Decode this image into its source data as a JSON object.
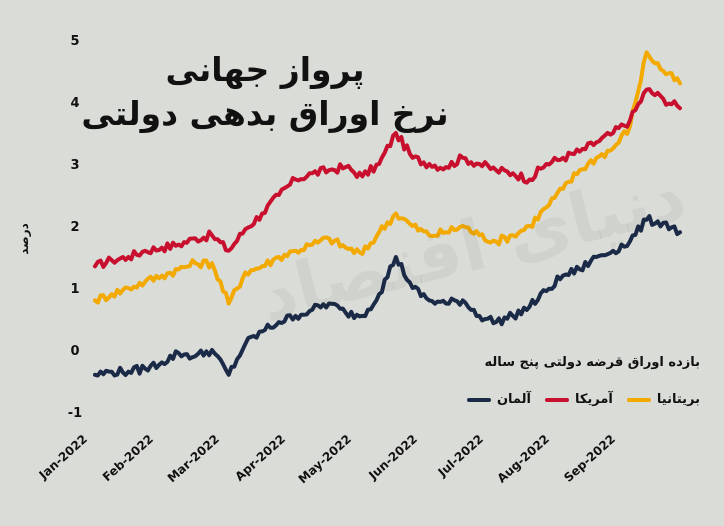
{
  "chart_data": {
    "type": "line",
    "title": "پرواز جهانی",
    "subtitle": "نرخ اوراق بدهی دولتی",
    "ylabel": "درصد",
    "xlabel": "",
    "ylim": [
      -1,
      5
    ],
    "yticks": [
      "-1",
      "0",
      "1",
      "2",
      "3",
      "4",
      "5"
    ],
    "xtick_labels": [
      "Jan-2022",
      "Feb-2022",
      "Mar-2022",
      "Apr-2022",
      "May-2022",
      "Jun-2022",
      "Jul-2022",
      "Aug-2022",
      "Sep-2022"
    ],
    "legend_title": "بازده اوراق قرضه دولتی پنج ساله",
    "legend_position": "bottom-right",
    "grid": false,
    "watermark": "دنیای اقتصاد",
    "x": [
      0,
      0.25,
      0.5,
      0.75,
      1,
      1.25,
      1.5,
      1.75,
      2,
      2.25,
      2.5,
      2.75,
      3,
      3.25,
      3.5,
      3.75,
      4,
      4.25,
      4.5,
      4.75,
      5,
      5.25,
      5.5,
      5.75,
      6,
      6.25,
      6.5,
      6.75,
      7,
      7.25,
      7.5,
      7.75,
      8,
      8.25,
      8.5,
      8.75
    ],
    "series": [
      {
        "name": "آمریکا",
        "color": "#c8102e",
        "values": [
          1.35,
          1.45,
          1.5,
          1.6,
          1.65,
          1.7,
          1.8,
          1.85,
          1.6,
          1.95,
          2.2,
          2.5,
          2.75,
          2.85,
          2.9,
          2.95,
          2.8,
          3.0,
          3.5,
          3.1,
          3.0,
          2.95,
          3.1,
          3.0,
          2.9,
          2.85,
          2.75,
          3.0,
          3.1,
          3.2,
          3.35,
          3.5,
          3.7,
          4.2,
          4.05,
          3.9
        ]
      },
      {
        "name": "بریتانیا",
        "color": "#f2a900",
        "values": [
          0.8,
          0.9,
          1.0,
          1.1,
          1.2,
          1.3,
          1.4,
          1.4,
          0.75,
          1.25,
          1.35,
          1.5,
          1.6,
          1.7,
          1.8,
          1.65,
          1.55,
          1.9,
          2.2,
          2.0,
          1.85,
          1.9,
          2.0,
          1.85,
          1.75,
          1.85,
          2.0,
          2.3,
          2.6,
          2.9,
          3.1,
          3.25,
          3.6,
          4.8,
          4.5,
          4.3
        ]
      },
      {
        "name": "آلمان",
        "color": "#1b2a47",
        "values": [
          -0.4,
          -0.35,
          -0.35,
          -0.3,
          -0.2,
          -0.05,
          -0.1,
          0.0,
          -0.4,
          0.1,
          0.3,
          0.45,
          0.55,
          0.65,
          0.75,
          0.6,
          0.55,
          0.9,
          1.5,
          1.0,
          0.8,
          0.75,
          0.8,
          0.55,
          0.45,
          0.55,
          0.7,
          0.95,
          1.2,
          1.3,
          1.5,
          1.6,
          1.75,
          2.1,
          2.05,
          1.9
        ]
      }
    ]
  }
}
